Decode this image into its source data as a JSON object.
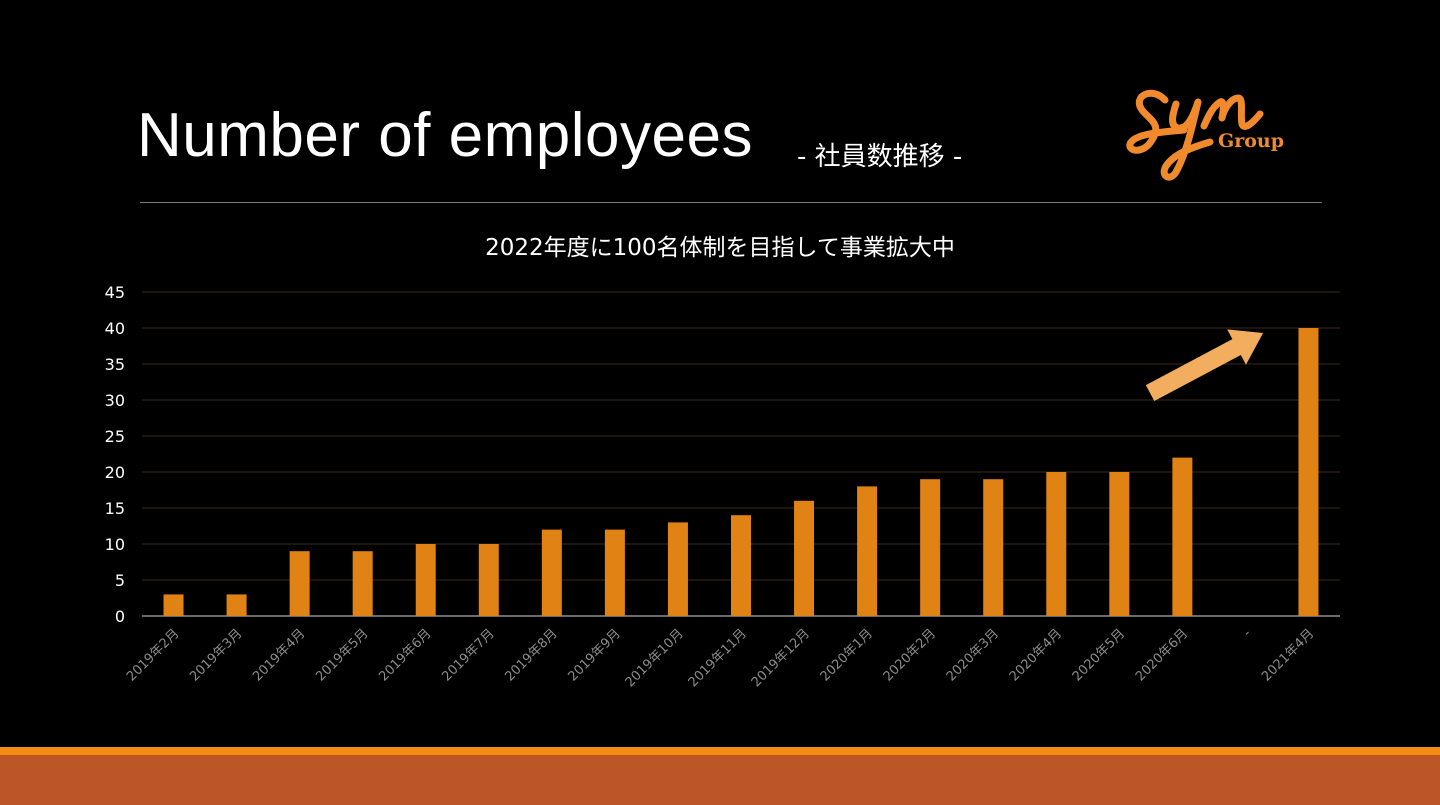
{
  "slide": {
    "title": "Number of employees",
    "subtitle": "- 社員数推移 -"
  },
  "logo": {
    "script_text": "syn",
    "word": "Group",
    "color": "#f08a2c"
  },
  "colors": {
    "background": "#000000",
    "bar": "#e08314",
    "arrow": "#f2ad5e",
    "gridline": "#3d2a1a",
    "footer_accent": "#f28c12",
    "footer_band": "#bd5626"
  },
  "chart_data": {
    "type": "bar",
    "title": "2022年度に100名体制を目指して事業拡大中",
    "xlabel": "",
    "ylabel": "",
    "ylim": [
      0,
      45
    ],
    "yticks": [
      0,
      5,
      10,
      15,
      20,
      25,
      30,
      35,
      40,
      45
    ],
    "grid": true,
    "legend": "none",
    "categories": [
      "2019年2月",
      "2019年3月",
      "2019年4月",
      "2019年5月",
      "2019年6月",
      "2019年7月",
      "2019年8月",
      "2019年9月",
      "2019年10月",
      "2019年11月",
      "2019年12月",
      "2020年1月",
      "2020年2月",
      "2020年3月",
      "2020年4月",
      "2020年5月",
      "2020年6月",
      "-",
      "2021年4月"
    ],
    "values": [
      3,
      3,
      9,
      9,
      10,
      10,
      12,
      12,
      13,
      14,
      16,
      18,
      19,
      19,
      20,
      20,
      22,
      null,
      40
    ],
    "annotations": [
      {
        "type": "arrow",
        "direction": "up-right",
        "near": "2021年4月"
      }
    ]
  }
}
